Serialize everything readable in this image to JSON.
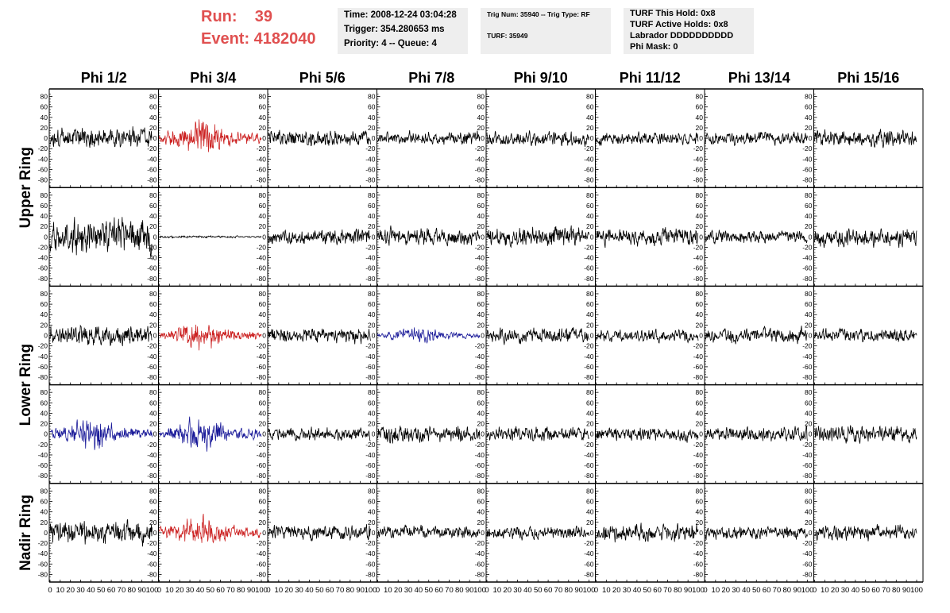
{
  "header": {
    "run_label": "Run:    39",
    "event_label": "Event: 4182040",
    "box1": [
      "Time: 2008-12-24 03:04:28",
      "Trigger: 354.280653 ms",
      "Priority: 4 -- Queue: 4"
    ],
    "box2": [
      "Trig Num: 35940 -- Trig Type: RF",
      "TURF: 35949"
    ],
    "box3": [
      "TURF This Hold: 0x8",
      "TURF Active Holds: 0x8",
      "Labrador DDDDDDDDDD",
      "Phi Mask: 0"
    ]
  },
  "colors": {
    "header_text": "#e05050",
    "default_trace": "#000000",
    "red_trace": "#cc2222",
    "blue_trace": "#1a1a99",
    "box_bg": "#eeeeee"
  },
  "chart_data": {
    "type": "line",
    "columns": [
      "Phi 1/2",
      "Phi 3/4",
      "Phi 5/6",
      "Phi 7/8",
      "Phi 9/10",
      "Phi 11/12",
      "Phi 13/14",
      "Phi 15/16"
    ],
    "row_groups": [
      {
        "label": "Upper Ring",
        "rows": 2
      },
      {
        "label": "Lower Ring",
        "rows": 2
      },
      {
        "label": "Nadir Ring",
        "rows": 1
      }
    ],
    "x_range": [
      0,
      100
    ],
    "x_ticks": [
      "0",
      "10",
      "20",
      "30",
      "40",
      "50",
      "60",
      "70",
      "80",
      "90",
      "100"
    ],
    "y_range": [
      -90,
      90
    ],
    "y_ticks": [
      "80",
      "60",
      "40",
      "20",
      "0",
      "-20",
      "-40",
      "-60",
      "-80"
    ],
    "samples_per_trace": 260,
    "traces": [
      [
        {
          "color": "black",
          "amp": 20,
          "seed": 11
        },
        {
          "color": "red",
          "amp": 30,
          "seed": 12,
          "burst": true
        },
        {
          "color": "black",
          "amp": 16,
          "seed": 13
        },
        {
          "color": "black",
          "amp": 12,
          "seed": 14
        },
        {
          "color": "black",
          "amp": 14,
          "seed": 15
        },
        {
          "color": "black",
          "amp": 12,
          "seed": 16
        },
        {
          "color": "black",
          "amp": 12,
          "seed": 17
        },
        {
          "color": "black",
          "amp": 16,
          "seed": 18
        }
      ],
      [
        {
          "color": "black",
          "amp": 34,
          "seed": 21
        },
        {
          "color": "black",
          "amp": 2,
          "seed": 22
        },
        {
          "color": "black",
          "amp": 14,
          "seed": 23
        },
        {
          "color": "black",
          "amp": 16,
          "seed": 24
        },
        {
          "color": "black",
          "amp": 18,
          "seed": 25
        },
        {
          "color": "black",
          "amp": 16,
          "seed": 26
        },
        {
          "color": "black",
          "amp": 12,
          "seed": 27
        },
        {
          "color": "black",
          "amp": 18,
          "seed": 28
        }
      ],
      [
        {
          "color": "black",
          "amp": 18,
          "seed": 31
        },
        {
          "color": "red",
          "amp": 24,
          "seed": 32,
          "burst": true
        },
        {
          "color": "black",
          "amp": 14,
          "seed": 33
        },
        {
          "color": "blue",
          "amp": 14,
          "seed": 34,
          "burst": true
        },
        {
          "color": "black",
          "amp": 14,
          "seed": 35
        },
        {
          "color": "black",
          "amp": 12,
          "seed": 36
        },
        {
          "color": "black",
          "amp": 14,
          "seed": 37
        },
        {
          "color": "black",
          "amp": 12,
          "seed": 38
        }
      ],
      [
        {
          "color": "blue",
          "amp": 28,
          "seed": 41,
          "burst": true
        },
        {
          "color": "blue",
          "amp": 26,
          "seed": 42,
          "burst": true
        },
        {
          "color": "black",
          "amp": 12,
          "seed": 43
        },
        {
          "color": "black",
          "amp": 16,
          "seed": 44
        },
        {
          "color": "black",
          "amp": 14,
          "seed": 45
        },
        {
          "color": "black",
          "amp": 12,
          "seed": 46
        },
        {
          "color": "black",
          "amp": 14,
          "seed": 47
        },
        {
          "color": "black",
          "amp": 16,
          "seed": 48
        }
      ],
      [
        {
          "color": "black",
          "amp": 22,
          "seed": 51
        },
        {
          "color": "red",
          "amp": 26,
          "seed": 52,
          "burst": true
        },
        {
          "color": "black",
          "amp": 14,
          "seed": 53
        },
        {
          "color": "black",
          "amp": 12,
          "seed": 54
        },
        {
          "color": "black",
          "amp": 12,
          "seed": 55
        },
        {
          "color": "black",
          "amp": 16,
          "seed": 56
        },
        {
          "color": "black",
          "amp": 12,
          "seed": 57
        },
        {
          "color": "black",
          "amp": 14,
          "seed": 58
        }
      ]
    ]
  }
}
